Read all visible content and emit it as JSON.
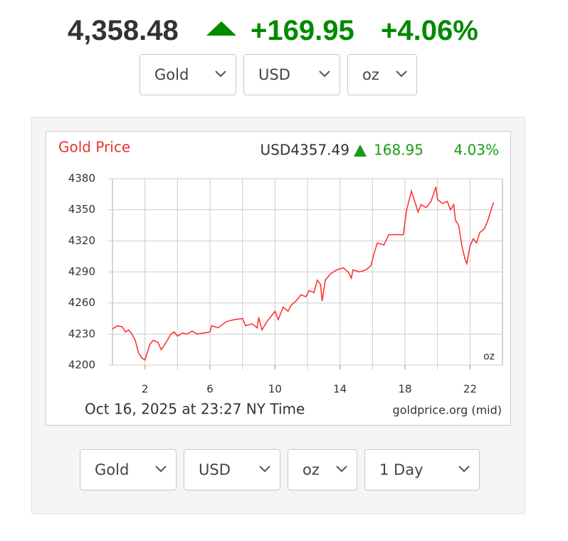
{
  "header": {
    "price": "4,358.48",
    "change": "+169.95",
    "change_percent": "+4.06%"
  },
  "top_selects": [
    "Gold",
    "USD",
    "oz"
  ],
  "chart_data": {
    "type": "line",
    "title": "Gold Price",
    "price_label": "USD4357.49",
    "change": "168.95",
    "change_percent": "4.03%",
    "unit_label": "oz",
    "footer": "Oct 16, 2025 at 23:27 NY Time",
    "source": "goldprice.org (mid)",
    "color": "#ff2a2a",
    "grid": true,
    "xgrid_step": 2,
    "xlim": [
      0,
      24
    ],
    "ylim": [
      4200,
      4380
    ],
    "xticks": [
      2,
      6,
      10,
      14,
      18,
      22
    ],
    "yticks": [
      4200,
      4230,
      4260,
      4290,
      4320,
      4350,
      4380
    ],
    "x": [
      0,
      0.3,
      0.6,
      0.8,
      1.0,
      1.2,
      1.4,
      1.6,
      1.8,
      2.0,
      2.1,
      2.3,
      2.5,
      2.8,
      3.0,
      3.3,
      3.6,
      3.8,
      4.0,
      4.3,
      4.6,
      4.9,
      5.2,
      5.6,
      6.0,
      6.1,
      6.5,
      7.0,
      7.5,
      8.0,
      8.2,
      8.6,
      8.9,
      9.0,
      9.2,
      9.5,
      9.8,
      10.0,
      10.2,
      10.5,
      10.8,
      11.0,
      11.3,
      11.6,
      11.9,
      12.1,
      12.4,
      12.6,
      12.8,
      12.9,
      13.1,
      13.4,
      13.8,
      14.2,
      14.5,
      14.7,
      14.8,
      15.2,
      15.6,
      15.9,
      16.1,
      16.3,
      16.7,
      17.0,
      17.5,
      17.9,
      18.1,
      18.4,
      18.6,
      18.8,
      19.0,
      19.3,
      19.6,
      19.9,
      20.0,
      20.3,
      20.6,
      20.8,
      21.0,
      21.1,
      21.3,
      21.5,
      21.7,
      21.8,
      22.0,
      22.2,
      22.4,
      22.6,
      22.9,
      23.1,
      23.3,
      23.45
    ],
    "values": [
      4235,
      4238,
      4237,
      4232,
      4234,
      4230,
      4224,
      4212,
      4207,
      4205,
      4210,
      4220,
      4224,
      4222,
      4215,
      4222,
      4230,
      4232,
      4228,
      4231,
      4230,
      4233,
      4230,
      4231,
      4232,
      4238,
      4236,
      4242,
      4244,
      4245,
      4238,
      4240,
      4236,
      4246,
      4234,
      4242,
      4248,
      4252,
      4244,
      4256,
      4252,
      4258,
      4262,
      4268,
      4266,
      4272,
      4270,
      4282,
      4278,
      4262,
      4282,
      4288,
      4292,
      4294,
      4290,
      4284,
      4292,
      4290,
      4292,
      4296,
      4308,
      4318,
      4316,
      4326,
      4326,
      4326,
      4350,
      4368,
      4358,
      4348,
      4355,
      4352,
      4358,
      4372,
      4360,
      4356,
      4358,
      4350,
      4355,
      4340,
      4335,
      4315,
      4302,
      4298,
      4315,
      4322,
      4318,
      4328,
      4332,
      4340,
      4350,
      4357
    ]
  },
  "bottom_selects": [
    "Gold",
    "USD",
    "oz",
    "1 Day"
  ]
}
